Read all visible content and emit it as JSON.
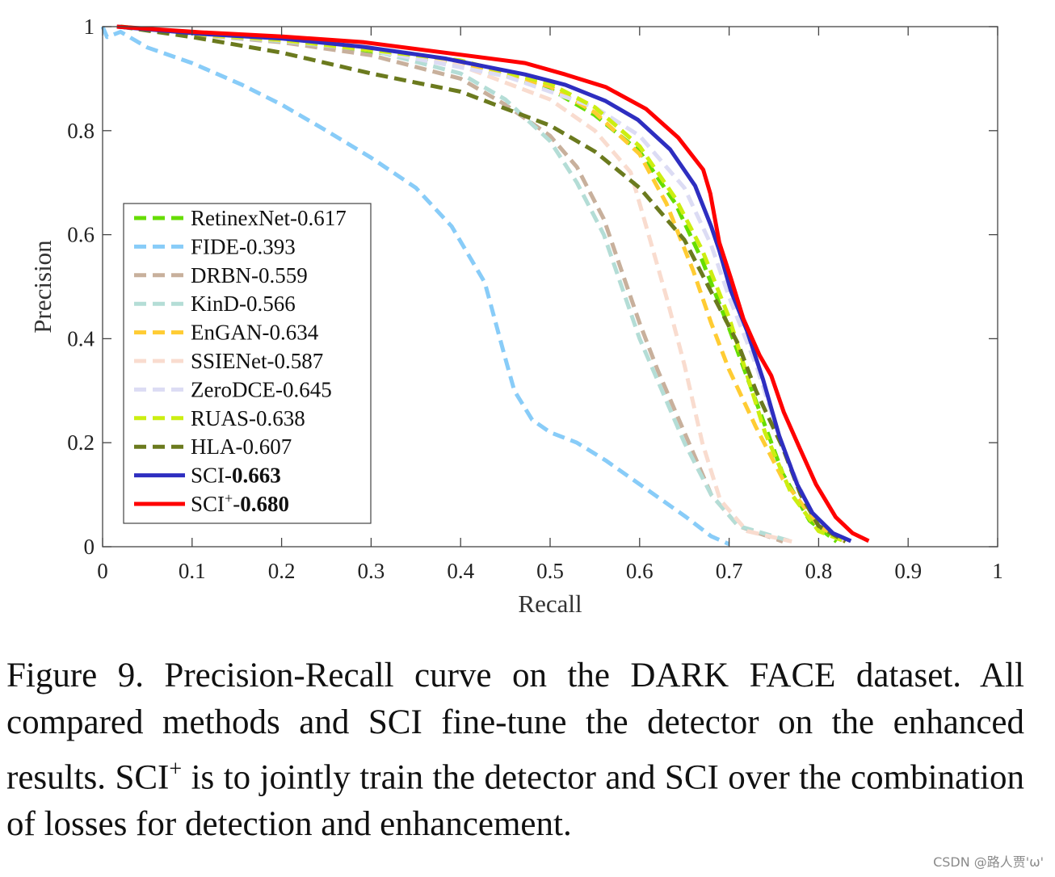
{
  "chart_data": {
    "type": "line",
    "title": "",
    "xlabel": "Recall",
    "ylabel": "Precision",
    "xlim": [
      0,
      1
    ],
    "ylim": [
      0,
      1
    ],
    "xticks": [
      "0",
      "0.1",
      "0.2",
      "0.3",
      "0.4",
      "0.5",
      "0.6",
      "0.7",
      "0.8",
      "0.9",
      "1"
    ],
    "yticks": [
      "0",
      "0.2",
      "0.4",
      "0.6",
      "0.8",
      "1"
    ],
    "grid": false,
    "legend_placement": "lower-left",
    "series": [
      {
        "name": "RetinexNet",
        "score": "0.617",
        "color": "#66dd00",
        "style": "dashed",
        "x": [
          0.02,
          0.1,
          0.2,
          0.3,
          0.4,
          0.5,
          0.55,
          0.6,
          0.64,
          0.67,
          0.7,
          0.73,
          0.76,
          0.79,
          0.82
        ],
        "y": [
          1.0,
          0.985,
          0.972,
          0.952,
          0.93,
          0.88,
          0.83,
          0.76,
          0.66,
          0.55,
          0.42,
          0.28,
          0.14,
          0.05,
          0.01
        ]
      },
      {
        "name": "FIDE",
        "score": "0.393",
        "color": "#88ccf8",
        "style": "dashed",
        "x": [
          0.0,
          0.005,
          0.02,
          0.05,
          0.1,
          0.156,
          0.2,
          0.25,
          0.3,
          0.35,
          0.39,
          0.427,
          0.449,
          0.46,
          0.48,
          0.5,
          0.53,
          0.562,
          0.6,
          0.652,
          0.68,
          0.7
        ],
        "y": [
          1.0,
          0.98,
          0.99,
          0.96,
          0.93,
          0.888,
          0.85,
          0.8,
          0.748,
          0.69,
          0.616,
          0.508,
          0.368,
          0.3,
          0.244,
          0.22,
          0.2,
          0.166,
          0.12,
          0.057,
          0.02,
          0.005
        ]
      },
      {
        "name": "DRBN",
        "score": "0.559",
        "color": "#c8b09c",
        "style": "dashed",
        "x": [
          0.02,
          0.1,
          0.2,
          0.3,
          0.4,
          0.45,
          0.5,
          0.53,
          0.56,
          0.58,
          0.6,
          0.62,
          0.64,
          0.66,
          0.68,
          0.71,
          0.76
        ],
        "y": [
          1.0,
          0.985,
          0.97,
          0.945,
          0.9,
          0.85,
          0.79,
          0.73,
          0.63,
          0.53,
          0.43,
          0.34,
          0.26,
          0.18,
          0.1,
          0.04,
          0.01
        ]
      },
      {
        "name": "KinD",
        "score": "0.566",
        "color": "#b4ddd6",
        "style": "dashed",
        "x": [
          0.02,
          0.1,
          0.2,
          0.3,
          0.4,
          0.45,
          0.5,
          0.53,
          0.56,
          0.58,
          0.6,
          0.62,
          0.65,
          0.68,
          0.71,
          0.77
        ],
        "y": [
          1.0,
          0.985,
          0.972,
          0.955,
          0.91,
          0.86,
          0.78,
          0.7,
          0.6,
          0.5,
          0.4,
          0.32,
          0.2,
          0.1,
          0.04,
          0.01
        ]
      },
      {
        "name": "EnGAN",
        "score": "0.634",
        "color": "#ffcc33",
        "style": "dashed",
        "x": [
          0.02,
          0.1,
          0.2,
          0.3,
          0.4,
          0.5,
          0.55,
          0.6,
          0.63,
          0.66,
          0.68,
          0.7,
          0.73,
          0.76,
          0.8,
          0.83
        ],
        "y": [
          1.0,
          0.985,
          0.974,
          0.955,
          0.93,
          0.885,
          0.835,
          0.755,
          0.66,
          0.53,
          0.43,
          0.34,
          0.23,
          0.13,
          0.04,
          0.01
        ]
      },
      {
        "name": "SSIENet",
        "score": "0.587",
        "color": "#f9dccf",
        "style": "dashed",
        "x": [
          0.02,
          0.1,
          0.2,
          0.3,
          0.4,
          0.5,
          0.55,
          0.59,
          0.61,
          0.63,
          0.65,
          0.67,
          0.69,
          0.72,
          0.77
        ],
        "y": [
          1.0,
          0.986,
          0.975,
          0.96,
          0.925,
          0.86,
          0.8,
          0.72,
          0.6,
          0.48,
          0.35,
          0.2,
          0.09,
          0.03,
          0.01
        ]
      },
      {
        "name": "ZeroDCE",
        "score": "0.645",
        "color": "#dcdcf4",
        "style": "dashed",
        "x": [
          0.02,
          0.1,
          0.2,
          0.3,
          0.45,
          0.55,
          0.6,
          0.65,
          0.68,
          0.7,
          0.73,
          0.76,
          0.79,
          0.82,
          0.83
        ],
        "y": [
          1.0,
          0.986,
          0.975,
          0.955,
          0.905,
          0.845,
          0.79,
          0.69,
          0.58,
          0.48,
          0.35,
          0.19,
          0.07,
          0.02,
          0.01
        ]
      },
      {
        "name": "RUAS",
        "score": "0.638",
        "color": "#ccee11",
        "style": "dashed",
        "x": [
          0.02,
          0.1,
          0.2,
          0.3,
          0.4,
          0.5,
          0.55,
          0.6,
          0.64,
          0.67,
          0.7,
          0.72,
          0.74,
          0.77,
          0.8,
          0.83
        ],
        "y": [
          1.0,
          0.986,
          0.975,
          0.955,
          0.935,
          0.89,
          0.845,
          0.77,
          0.67,
          0.57,
          0.44,
          0.33,
          0.22,
          0.1,
          0.03,
          0.01
        ]
      },
      {
        "name": "HLA",
        "score": "0.607",
        "color": "#6b7a1e",
        "style": "dashed",
        "x": [
          0.02,
          0.1,
          0.2,
          0.3,
          0.4,
          0.5,
          0.55,
          0.6,
          0.65,
          0.68,
          0.71,
          0.73,
          0.76,
          0.78,
          0.8,
          0.83
        ],
        "y": [
          1.0,
          0.98,
          0.95,
          0.91,
          0.875,
          0.81,
          0.76,
          0.69,
          0.59,
          0.49,
          0.39,
          0.3,
          0.19,
          0.1,
          0.04,
          0.01
        ]
      },
      {
        "name": "SCI",
        "score": "0.663",
        "color": "#2e2ec0",
        "style": "solid",
        "bold_score": true,
        "x": [
          0.016,
          0.111,
          0.201,
          0.292,
          0.382,
          0.472,
          0.517,
          0.562,
          0.598,
          0.634,
          0.662,
          0.68,
          0.689,
          0.702,
          0.72,
          0.738,
          0.756,
          0.776,
          0.793,
          0.816,
          0.836
        ],
        "y": [
          1.0,
          0.986,
          0.977,
          0.961,
          0.939,
          0.908,
          0.888,
          0.857,
          0.821,
          0.764,
          0.694,
          0.616,
          0.57,
          0.492,
          0.415,
          0.321,
          0.213,
          0.12,
          0.065,
          0.026,
          0.011
        ]
      },
      {
        "name": "SCI+",
        "score": "0.680",
        "color": "#ff0000",
        "style": "solid",
        "bold_score": true,
        "x": [
          0.016,
          0.111,
          0.201,
          0.292,
          0.382,
          0.472,
          0.517,
          0.562,
          0.607,
          0.643,
          0.671,
          0.679,
          0.689,
          0.702,
          0.716,
          0.734,
          0.747,
          0.761,
          0.779,
          0.797,
          0.819,
          0.838,
          0.856
        ],
        "y": [
          1.0,
          0.989,
          0.981,
          0.97,
          0.95,
          0.93,
          0.908,
          0.884,
          0.842,
          0.787,
          0.725,
          0.679,
          0.585,
          0.516,
          0.438,
          0.368,
          0.329,
          0.259,
          0.189,
          0.12,
          0.057,
          0.026,
          0.011
        ]
      }
    ],
    "legend": [
      {
        "label": "RetinexNet-0.617"
      },
      {
        "label": "FIDE-0.393"
      },
      {
        "label": "DRBN-0.559"
      },
      {
        "label": "KinD-0.566"
      },
      {
        "label": "EnGAN-0.634"
      },
      {
        "label": "SSIENet-0.587"
      },
      {
        "label": "ZeroDCE-0.645"
      },
      {
        "label": "RUAS-0.638"
      },
      {
        "label": "HLA-0.607"
      },
      {
        "prefix": "SCI-",
        "bold": "0.663"
      },
      {
        "prefix": "SCI",
        "sup": "+",
        "dash": "-",
        "bold": "0.680"
      }
    ]
  },
  "caption": {
    "part1": "Figure 9. Precision-Recall curve on the DARK FACE dataset. All compared methods and SCI fine-tune the detector on the enhanced results. SCI",
    "sup": "+",
    "part2": " is to jointly train the detector and SCI over the combination of losses for detection and enhancement."
  },
  "watermark": "CSDN @路人贾'ω'"
}
